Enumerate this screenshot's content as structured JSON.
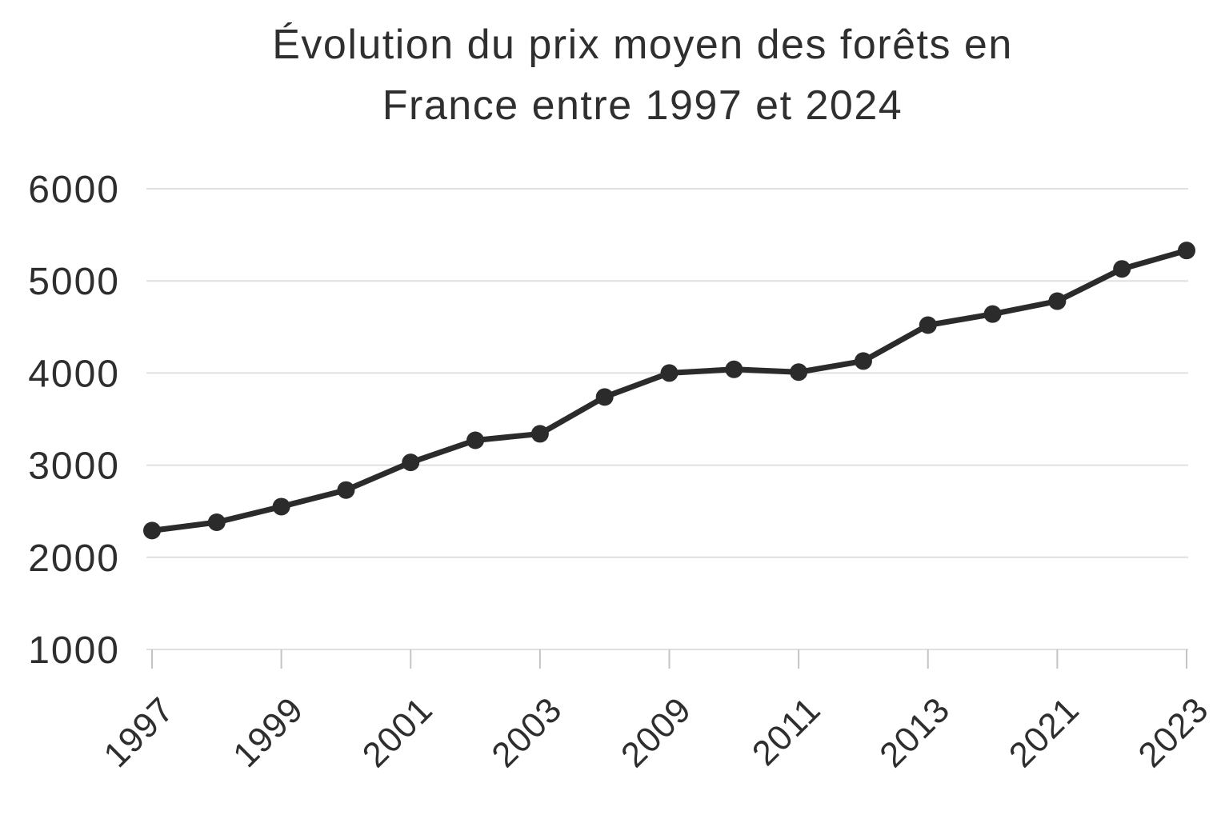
{
  "title": {
    "line1": "Évolution du prix moyen des forêts en",
    "line2": "France entre 1997 et 2024"
  },
  "chart_data": {
    "type": "line",
    "title": "Évolution du prix moyen des forêts en France entre 1997 et 2024",
    "x_tick_labels": [
      "1997",
      "1999",
      "2001",
      "2003",
      "2009",
      "2011",
      "2013",
      "2021",
      "2023"
    ],
    "label_every_nth_point": 2,
    "values": [
      2290,
      2380,
      2550,
      2730,
      3030,
      3270,
      3340,
      3740,
      4000,
      4040,
      4010,
      4130,
      4520,
      4640,
      4780,
      5130,
      5330
    ],
    "y_ticks": [
      1000,
      2000,
      3000,
      4000,
      5000,
      6000
    ],
    "ylim": [
      1000,
      6000
    ],
    "xlabel": "",
    "ylabel": "",
    "grid": "horizontal",
    "legend": "none",
    "colors": {
      "line": "#2b2b2b",
      "marker": "#2b2b2b",
      "grid": "#e0e0e0",
      "tick": "#c4c4c4",
      "text": "#2e2e2e",
      "background": "#ffffff"
    }
  }
}
